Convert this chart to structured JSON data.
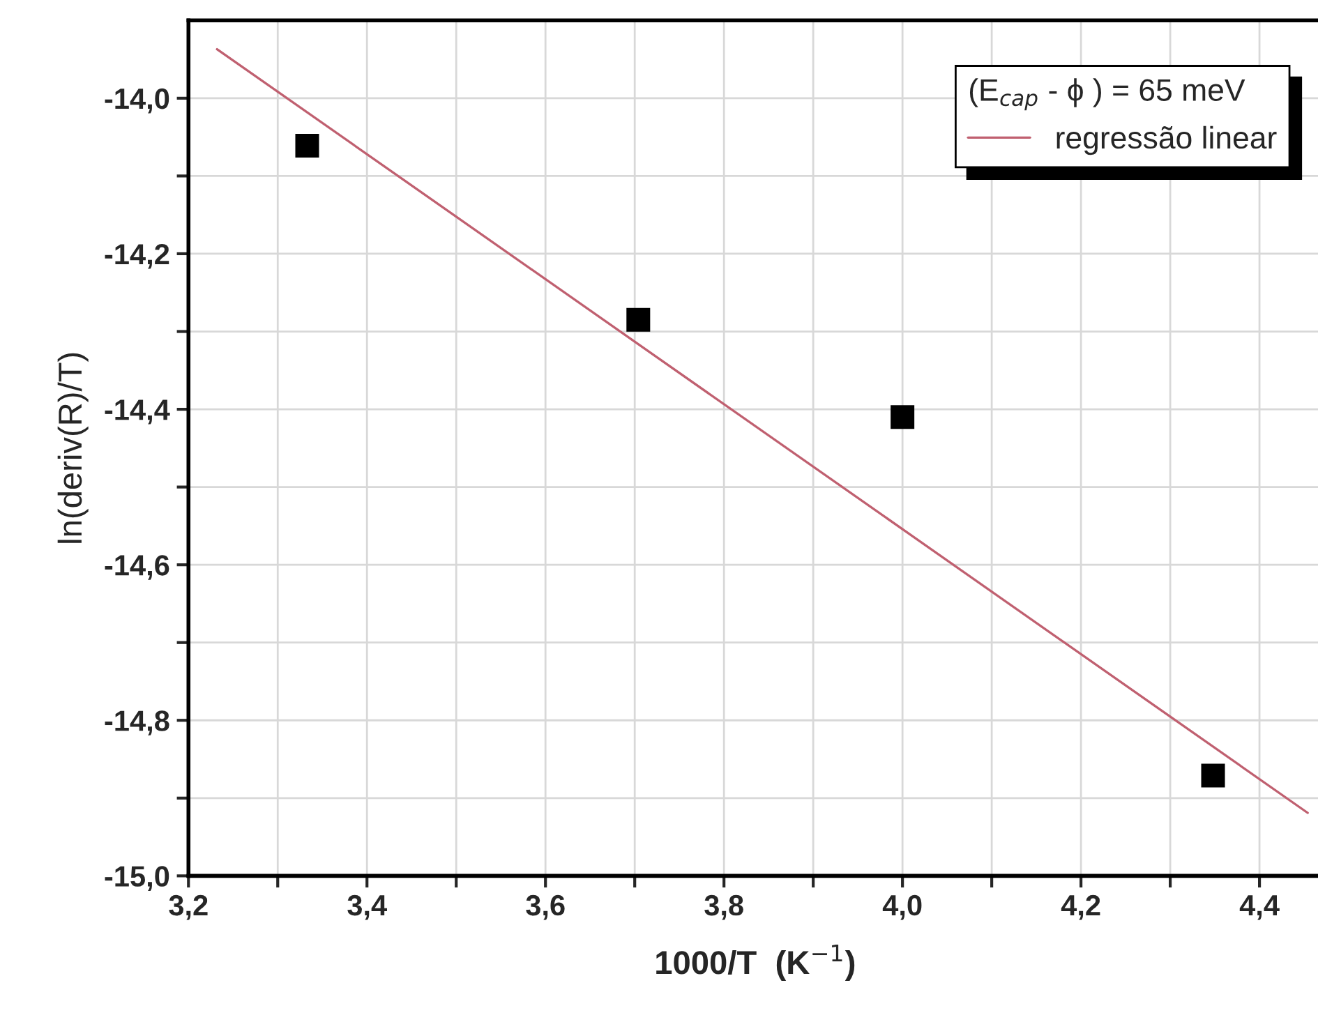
{
  "chart_data": {
    "type": "scatter",
    "xlabel": "1000/T  (K$^{−1}$)",
    "ylabel": "ln(deriv(R)/T)",
    "legend_title": "(E$_{cap}$ - ϕ ) = 65 meV",
    "series": [
      {
        "color": "#000000",
        "marker": "square",
        "x": [
          3.333,
          3.704,
          4.0,
          4.348
        ],
        "values": [
          -14.061,
          -14.285,
          -14.41,
          -14.871
        ]
      },
      {
        "type": "line",
        "name": "regressão linear",
        "color": "#c06070",
        "marker": "none",
        "x": [
          3.232,
          4.454
        ],
        "values": [
          -13.937,
          -14.919
        ]
      }
    ],
    "xlim": [
      3.2,
      4.47
    ],
    "ylim": [
      -15.0,
      -13.9
    ],
    "xticks": [
      {
        "value": 3.2,
        "label": "3,2"
      },
      {
        "value": 3.3,
        "label": null
      },
      {
        "value": 3.4,
        "label": "3,4"
      },
      {
        "value": 3.5,
        "label": null
      },
      {
        "value": 3.6,
        "label": "3,6"
      },
      {
        "value": 3.7,
        "label": null
      },
      {
        "value": 3.8,
        "label": "3,8"
      },
      {
        "value": 3.9,
        "label": null
      },
      {
        "value": 4.0,
        "label": "4,0"
      },
      {
        "value": 4.1,
        "label": null
      },
      {
        "value": 4.2,
        "label": "4,2"
      },
      {
        "value": 4.3,
        "label": null
      },
      {
        "value": 4.4,
        "label": "4,4"
      }
    ],
    "yticks": [
      {
        "value": -15.0,
        "label": "-15,0"
      },
      {
        "value": -14.9,
        "label": null
      },
      {
        "value": -14.8,
        "label": "-14,8"
      },
      {
        "value": -14.7,
        "label": null
      },
      {
        "value": -14.6,
        "label": "-14,6"
      },
      {
        "value": -14.5,
        "label": null
      },
      {
        "value": -14.4,
        "label": "-14,4"
      },
      {
        "value": -14.3,
        "label": null
      },
      {
        "value": -14.2,
        "label": "-14,2"
      },
      {
        "value": -14.1,
        "label": null
      },
      {
        "value": -14.0,
        "label": "-14,0"
      }
    ],
    "grid": true,
    "legend": "top right"
  }
}
